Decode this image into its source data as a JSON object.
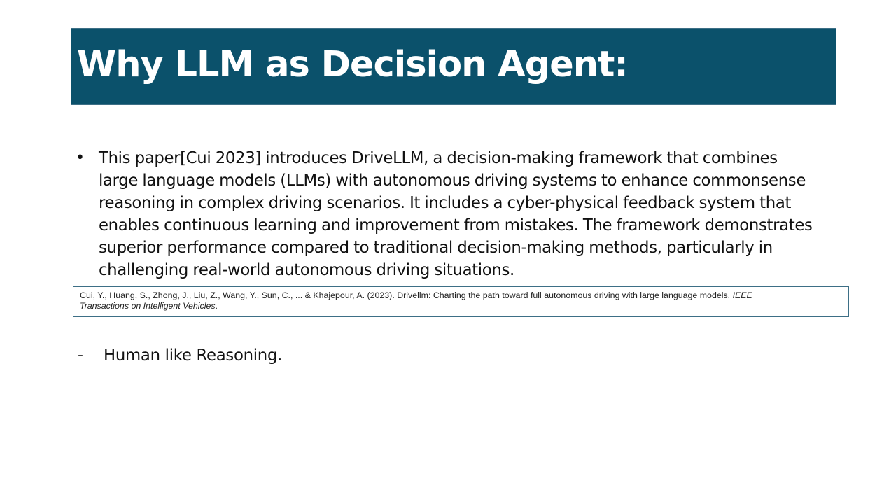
{
  "slide": {
    "title": "Why LLM as Decision Agent:",
    "bullet_marker": "•",
    "bullet_lines": [
      "This paper[Cui 2023] introduces DriveLLM, a decision-making framework that combines",
      "large language models (LLMs) with autonomous driving systems to enhance commonsense",
      "reasoning in complex driving scenarios. It includes a cyber-physical feedback system that",
      "enables continuous learning and improvement from mistakes. The framework demonstrates",
      "superior performance compared to traditional decision-making methods, particularly in",
      "challenging real-world autonomous driving situations."
    ],
    "citation": {
      "line1_plain": "Cui, Y., Huang, S., Zhong, J., Liu, Z., Wang, Y., Sun, C., ... & Khajepour, A. (2023). Drivellm: Charting the path toward full autonomous driving with large language models. ",
      "line1_italic": "IEEE",
      "line2_italic": "Transactions on Intelligent Vehicles",
      "line2_end": "."
    },
    "sub_marker": "-",
    "sub_item": "Human like Reasoning."
  },
  "colors": {
    "title_background": "#0b516b",
    "title_text": "#ffffff",
    "citation_border": "#3d6f86"
  }
}
